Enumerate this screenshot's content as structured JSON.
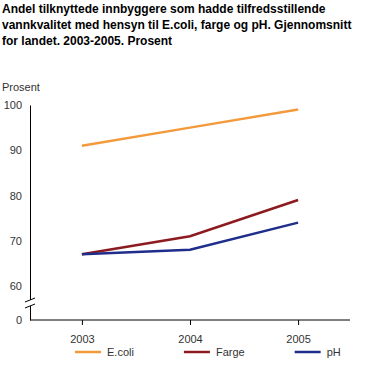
{
  "chart_data": {
    "type": "line",
    "title": "Andel tilknyttede innbyggere som hadde tilfredsstillende vannkvalitet med hensyn til E.coli, farge og pH. Gjennomsnitt for landet. 2003-2005. Prosent",
    "y_label": "Prosent",
    "categories": [
      "2003",
      "2004",
      "2005"
    ],
    "series": [
      {
        "name": "E.coli",
        "color": "#f39a3c",
        "values": [
          91,
          95,
          99
        ]
      },
      {
        "name": "Farge",
        "color": "#8c1a1f",
        "values": [
          67,
          71,
          79
        ]
      },
      {
        "name": "pH",
        "color": "#1f2e8a",
        "values": [
          67,
          68,
          74
        ]
      }
    ],
    "ylim": [
      0,
      100
    ],
    "yticks": [
      0,
      60,
      70,
      80,
      90,
      100
    ],
    "grid": false,
    "legend": "bottom"
  }
}
